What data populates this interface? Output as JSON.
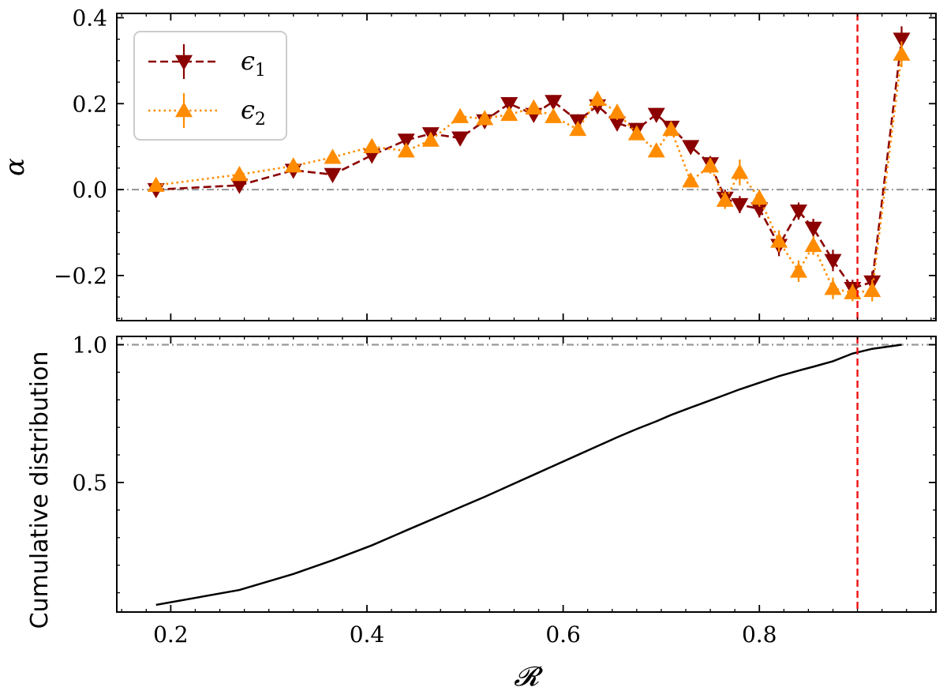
{
  "chart_data": [
    {
      "type": "line",
      "panel": "top",
      "ylabel": "α",
      "xlabel": "",
      "xlim": [
        0.145,
        0.98
      ],
      "ylim": [
        -0.305,
        0.41
      ],
      "yticks": [
        0.4,
        0.2,
        0.0,
        -0.2
      ],
      "ytick_labels": [
        "0.4",
        "0.2",
        "0.0",
        "−0.2"
      ],
      "reference_hline": 0.0,
      "reference_vline": 0.9,
      "legend_position": "top-left",
      "series": [
        {
          "name": "ϵ1",
          "legend_label": "ϵ",
          "legend_sub": "1",
          "color": "#8b0000",
          "marker": "triangle-down",
          "linestyle": "dashed",
          "x": [
            0.185,
            0.27,
            0.325,
            0.365,
            0.405,
            0.44,
            0.465,
            0.495,
            0.52,
            0.545,
            0.57,
            0.59,
            0.615,
            0.635,
            0.655,
            0.675,
            0.695,
            0.71,
            0.73,
            0.75,
            0.765,
            0.78,
            0.8,
            0.82,
            0.84,
            0.855,
            0.875,
            0.895,
            0.915,
            0.945
          ],
          "y": [
            0.0,
            0.01,
            0.045,
            0.035,
            0.08,
            0.115,
            0.13,
            0.12,
            0.16,
            0.2,
            0.175,
            0.205,
            0.16,
            0.195,
            0.155,
            0.14,
            0.175,
            0.145,
            0.1,
            0.06,
            -0.02,
            -0.035,
            -0.045,
            -0.13,
            -0.05,
            -0.09,
            -0.165,
            -0.23,
            -0.215,
            0.35
          ],
          "yerr": [
            0.008,
            0.008,
            0.01,
            0.01,
            0.012,
            0.012,
            0.012,
            0.012,
            0.015,
            0.015,
            0.015,
            0.015,
            0.015,
            0.018,
            0.018,
            0.015,
            0.015,
            0.015,
            0.015,
            0.018,
            0.02,
            0.02,
            0.02,
            0.025,
            0.02,
            0.022,
            0.025,
            0.02,
            0.025,
            0.03
          ]
        },
        {
          "name": "ϵ2",
          "legend_label": "ϵ",
          "legend_sub": "2",
          "color": "#ff8c00",
          "marker": "triangle-up",
          "linestyle": "dotted",
          "x": [
            0.185,
            0.27,
            0.325,
            0.365,
            0.405,
            0.44,
            0.465,
            0.495,
            0.52,
            0.545,
            0.57,
            0.59,
            0.615,
            0.635,
            0.655,
            0.675,
            0.695,
            0.71,
            0.73,
            0.75,
            0.765,
            0.78,
            0.8,
            0.82,
            0.84,
            0.855,
            0.875,
            0.895,
            0.915,
            0.945
          ],
          "y": [
            0.01,
            0.035,
            0.055,
            0.075,
            0.1,
            0.09,
            0.115,
            0.17,
            0.165,
            0.175,
            0.19,
            0.17,
            0.14,
            0.21,
            0.18,
            0.13,
            0.09,
            0.14,
            0.02,
            0.055,
            -0.025,
            0.04,
            -0.02,
            -0.12,
            -0.19,
            -0.13,
            -0.23,
            -0.24,
            -0.235,
            0.315
          ],
          "yerr": [
            0.008,
            0.008,
            0.01,
            0.01,
            0.012,
            0.012,
            0.012,
            0.012,
            0.015,
            0.015,
            0.015,
            0.015,
            0.015,
            0.018,
            0.018,
            0.015,
            0.015,
            0.015,
            0.015,
            0.018,
            0.02,
            0.03,
            0.02,
            0.025,
            0.025,
            0.022,
            0.025,
            0.02,
            0.025,
            0.03
          ]
        }
      ]
    },
    {
      "type": "line",
      "panel": "bottom",
      "ylabel": "Cumulative distribution",
      "xlabel": "𝓡",
      "xlim": [
        0.145,
        0.98
      ],
      "ylim": [
        0.03,
        1.03
      ],
      "yticks": [
        1.0,
        0.5
      ],
      "ytick_labels": [
        "1.0",
        "0.5"
      ],
      "xticks": [
        0.2,
        0.4,
        0.6,
        0.8
      ],
      "xtick_labels": [
        "0.2",
        "0.4",
        "0.6",
        "0.8"
      ],
      "reference_hline": 1.0,
      "reference_vline": 0.9,
      "series": [
        {
          "name": "cumulative",
          "color": "#000000",
          "linestyle": "solid",
          "x": [
            0.185,
            0.27,
            0.325,
            0.365,
            0.405,
            0.44,
            0.465,
            0.495,
            0.52,
            0.545,
            0.57,
            0.59,
            0.615,
            0.635,
            0.655,
            0.675,
            0.695,
            0.71,
            0.73,
            0.75,
            0.765,
            0.78,
            0.8,
            0.82,
            0.84,
            0.855,
            0.875,
            0.895,
            0.915,
            0.945
          ],
          "y": [
            0.056,
            0.11,
            0.168,
            0.218,
            0.272,
            0.326,
            0.364,
            0.41,
            0.448,
            0.488,
            0.528,
            0.56,
            0.6,
            0.632,
            0.664,
            0.694,
            0.722,
            0.745,
            0.772,
            0.798,
            0.818,
            0.838,
            0.862,
            0.886,
            0.906,
            0.92,
            0.94,
            0.968,
            0.985,
            1.0
          ]
        }
      ]
    }
  ]
}
